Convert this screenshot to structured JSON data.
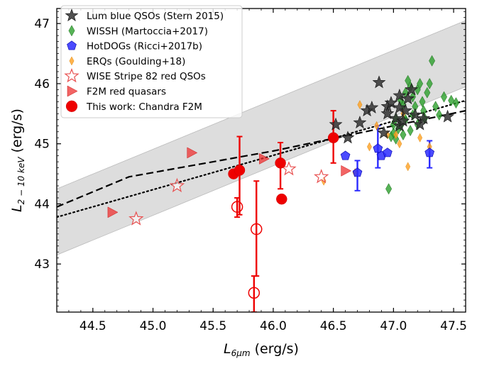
{
  "chart_data": {
    "type": "scatter",
    "title": "",
    "xlabel": "L",
    "xlabel_sub": "6μm",
    "xlabel_unit": " (erg/s)",
    "ylabel": "L",
    "ylabel_sub": "2 − 10 keV",
    "ylabel_unit": " (erg/s)",
    "xlim": [
      44.2,
      47.6
    ],
    "ylim": [
      42.2,
      47.25
    ],
    "xticks": [
      "44.5",
      "45.0",
      "45.5",
      "46.0",
      "46.5",
      "47.0",
      "47.5"
    ],
    "xtick_values": [
      44.5,
      45.0,
      45.5,
      46.0,
      46.5,
      47.0,
      47.5
    ],
    "yticks": [
      "43",
      "44",
      "45",
      "46",
      "47"
    ],
    "ytick_values": [
      43,
      44,
      45,
      46,
      47
    ],
    "legend_position": "top-left",
    "colors": {
      "stern": "#333333",
      "wissh": "#2ca02c",
      "hotdog": "#2b2bff",
      "erq": "#ffa020",
      "wise": "#e85050",
      "f2m": "#ee3030",
      "thiswork": "#ee0000",
      "band": "#d9d9d9"
    },
    "relations": {
      "band_lower": [
        [
          44.2,
          43.15
        ],
        [
          47.6,
          45.95
        ]
      ],
      "band_upper": [
        [
          44.2,
          44.25
        ],
        [
          47.6,
          47.05
        ]
      ],
      "dashed": [
        [
          44.2,
          43.95
        ],
        [
          44.8,
          44.45
        ],
        [
          46.0,
          44.88
        ],
        [
          47.6,
          45.55
        ]
      ],
      "dotted": [
        [
          44.2,
          43.78
        ],
        [
          47.6,
          45.72
        ]
      ]
    },
    "series": [
      {
        "name": "Lum blue QSOs (Stern 2015)",
        "marker": "star",
        "points": [
          [
            46.52,
            45.32
          ],
          [
            46.62,
            45.1
          ],
          [
            46.72,
            45.35
          ],
          [
            46.78,
            45.55
          ],
          [
            46.82,
            45.6
          ],
          [
            46.88,
            46.02
          ],
          [
            46.92,
            45.18
          ],
          [
            46.95,
            45.62
          ],
          [
            46.95,
            45.5
          ],
          [
            46.98,
            45.68
          ],
          [
            47.02,
            45.42
          ],
          [
            47.05,
            45.3
          ],
          [
            47.05,
            45.8
          ],
          [
            47.08,
            45.38
          ],
          [
            47.1,
            45.55
          ],
          [
            47.12,
            45.75
          ],
          [
            47.15,
            45.9
          ],
          [
            47.18,
            45.48
          ],
          [
            47.22,
            45.32
          ],
          [
            47.25,
            45.42
          ],
          [
            47.45,
            45.45
          ],
          [
            47.05,
            45.6
          ]
        ]
      },
      {
        "name": "WISSH (Martoccia+2017)",
        "marker": "diamond",
        "points": [
          [
            46.96,
            44.25
          ],
          [
            46.98,
            45.12
          ],
          [
            47.0,
            45.18
          ],
          [
            47.02,
            45.08
          ],
          [
            47.04,
            45.25
          ],
          [
            47.06,
            45.3
          ],
          [
            47.08,
            45.15
          ],
          [
            47.1,
            45.4
          ],
          [
            47.1,
            45.85
          ],
          [
            47.12,
            46.05
          ],
          [
            47.14,
            45.95
          ],
          [
            47.16,
            45.78
          ],
          [
            47.18,
            45.62
          ],
          [
            47.2,
            45.9
          ],
          [
            47.22,
            46.0
          ],
          [
            47.24,
            45.7
          ],
          [
            47.25,
            45.55
          ],
          [
            47.28,
            45.85
          ],
          [
            47.3,
            46.0
          ],
          [
            47.32,
            46.38
          ],
          [
            47.35,
            45.62
          ],
          [
            47.38,
            45.48
          ],
          [
            47.42,
            45.78
          ],
          [
            47.48,
            45.72
          ],
          [
            47.52,
            45.68
          ],
          [
            47.08,
            45.65
          ],
          [
            47.02,
            45.42
          ],
          [
            47.14,
            45.22
          ],
          [
            47.0,
            45.32
          ],
          [
            47.2,
            45.32
          ],
          [
            47.26,
            45.42
          ],
          [
            47.16,
            45.48
          ],
          [
            47.06,
            45.72
          ]
        ]
      },
      {
        "name": "HotDOGs (Ricci+2017b)",
        "marker": "pentagon",
        "points": [
          [
            46.6,
            44.8
          ],
          [
            46.7,
            44.52
          ],
          [
            46.87,
            44.92
          ],
          [
            46.9,
            44.8
          ],
          [
            46.95,
            44.85
          ],
          [
            47.3,
            44.85
          ]
        ],
        "errors": [
          [
            46.7,
            44.22,
            44.72
          ],
          [
            46.87,
            44.6,
            45.3
          ],
          [
            47.3,
            44.6,
            45.05
          ]
        ]
      },
      {
        "name": "ERQs (Goulding+18)",
        "marker": "diamond-small",
        "points": [
          [
            46.42,
            44.38
          ],
          [
            46.68,
            44.52
          ],
          [
            46.72,
            45.65
          ],
          [
            46.8,
            44.95
          ],
          [
            46.86,
            45.3
          ],
          [
            47.02,
            45.15
          ],
          [
            47.05,
            45.0
          ],
          [
            47.08,
            45.5
          ],
          [
            47.12,
            44.62
          ],
          [
            47.22,
            45.1
          ],
          [
            47.3,
            44.95
          ],
          [
            46.95,
            45.15
          ]
        ]
      },
      {
        "name": "WISE Stripe 82 red QSOs",
        "marker": "star-open",
        "points": [
          [
            44.86,
            43.75
          ],
          [
            45.2,
            44.3
          ],
          [
            46.13,
            44.58
          ],
          [
            46.4,
            44.45
          ]
        ]
      },
      {
        "name": "F2M red quasars",
        "marker": "triangle-right",
        "points": [
          [
            44.66,
            43.86
          ],
          [
            45.32,
            44.85
          ],
          [
            45.92,
            44.75
          ],
          [
            46.6,
            44.55
          ]
        ]
      },
      {
        "name": "This work: Chandra F2M",
        "marker": "circle",
        "points": [
          [
            45.67,
            44.5
          ],
          [
            45.72,
            44.56
          ],
          [
            46.06,
            44.68
          ],
          [
            46.07,
            44.08
          ],
          [
            46.5,
            45.1
          ]
        ],
        "open_points": [
          [
            45.7,
            43.95
          ],
          [
            45.86,
            43.58
          ],
          [
            45.84,
            42.52
          ]
        ],
        "errors": [
          [
            45.72,
            43.82,
            45.12
          ],
          [
            45.7,
            43.78,
            44.1
          ],
          [
            45.86,
            42.8,
            44.38
          ],
          [
            45.84,
            42.2,
            42.8
          ],
          [
            46.06,
            44.25,
            45.02
          ],
          [
            46.5,
            44.68,
            45.55
          ]
        ]
      }
    ]
  }
}
